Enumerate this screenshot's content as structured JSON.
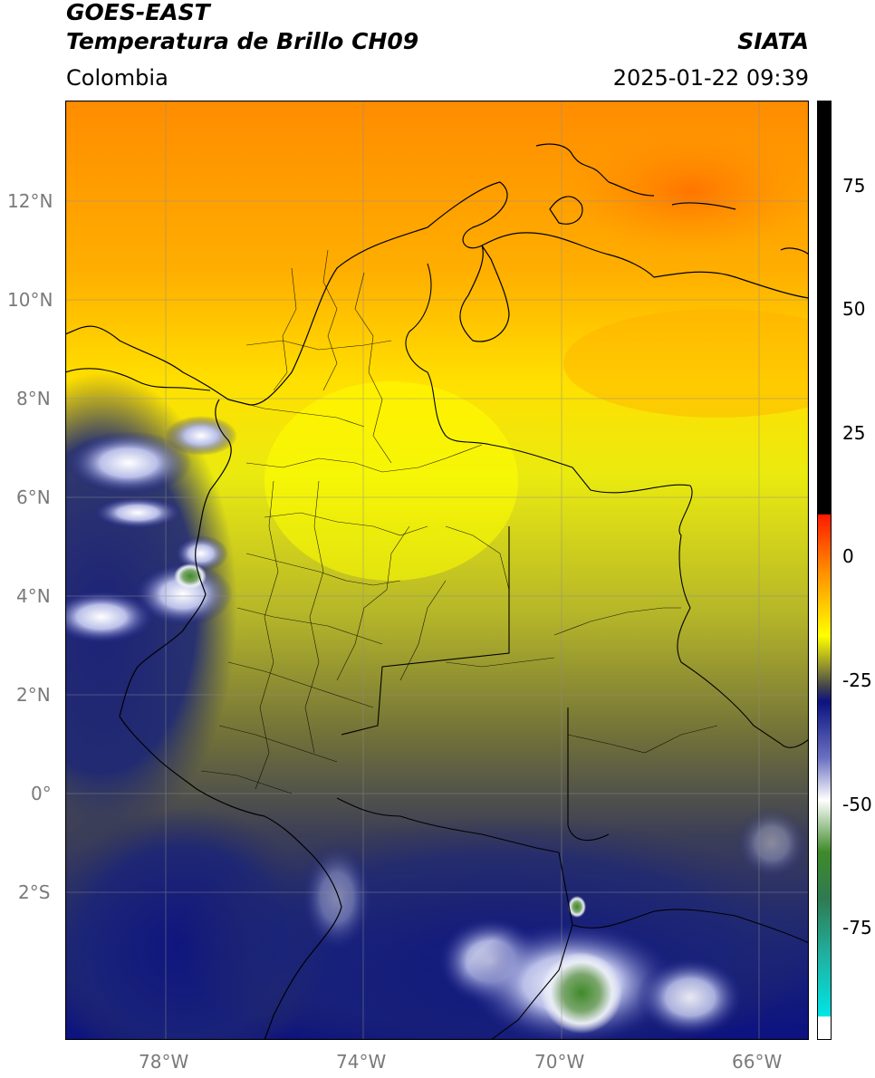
{
  "header": {
    "satellite": "GOES-EAST",
    "product": "Temperatura de Brillo CH09",
    "organization": "SIATA",
    "region": "Colombia",
    "datetime": "2025-01-22 09:39"
  },
  "map": {
    "lat_labels": [
      "12°N",
      "10°N",
      "8°N",
      "6°N",
      "4°N",
      "2°N",
      "0°",
      "2°S"
    ],
    "lon_labels": [
      "78°W",
      "74°W",
      "70°W",
      "66°W"
    ],
    "grid": true,
    "lon_range": [
      -80,
      -65
    ],
    "lat_range": [
      -5,
      14
    ]
  },
  "colorbar": {
    "ticks": [
      "75",
      "50",
      "25",
      "0",
      "-25",
      "-50",
      "-75"
    ],
    "colors": {
      "top": "#000000",
      "red": "#ff1a00",
      "orange": "#ff9a00",
      "yellow": "#ffff00",
      "olive": "#8a8a2e",
      "gray": "#3f3f4f",
      "navy": "#0c1280",
      "white": "#ffffff",
      "green": "#3f8a2a",
      "cyan": "#00e5e5"
    }
  }
}
